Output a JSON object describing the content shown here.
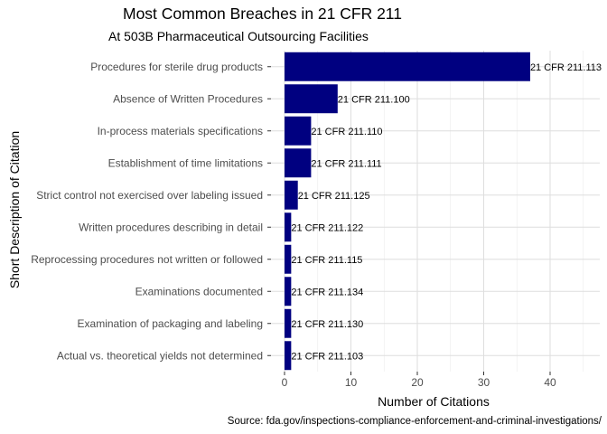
{
  "chart_data": {
    "type": "bar",
    "orientation": "horizontal",
    "title": "Most Common Breaches in 21 CFR 211",
    "subtitle": "At 503B Pharmaceutical Outsourcing Facilities",
    "xlabel": "Number of Citations",
    "ylabel": "Short Description of Citation",
    "caption": "Source: fda.gov/inspections-compliance-enforcement-and-criminal-investigations/",
    "categories": [
      "Procedures for sterile drug products",
      "Absence of Written Procedures",
      "In-process materials specifications",
      "Establishment of time limitations",
      "Strict control not exercised over labeling issued",
      "Written procedures describing in detail",
      "Reprocessing procedures not written or followed",
      "Examinations documented",
      "Examination of packaging and labeling",
      "Actual vs. theoretical yields not determined"
    ],
    "values": [
      37,
      8,
      4,
      4,
      2,
      1,
      1,
      1,
      1,
      1
    ],
    "bar_labels": [
      "21 CFR 211.113",
      "21 CFR 211.100",
      "21 CFR 211.110",
      "21 CFR 211.111",
      "21 CFR 211.125",
      "21 CFR 211.122",
      "21 CFR 211.115",
      "21 CFR 211.134",
      "21 CFR 211.130",
      "21 CFR 211.103"
    ],
    "xticks": [
      0,
      10,
      20,
      30,
      40
    ],
    "xlim": [
      0,
      46
    ],
    "grid": true,
    "bar_color": "#000080"
  }
}
